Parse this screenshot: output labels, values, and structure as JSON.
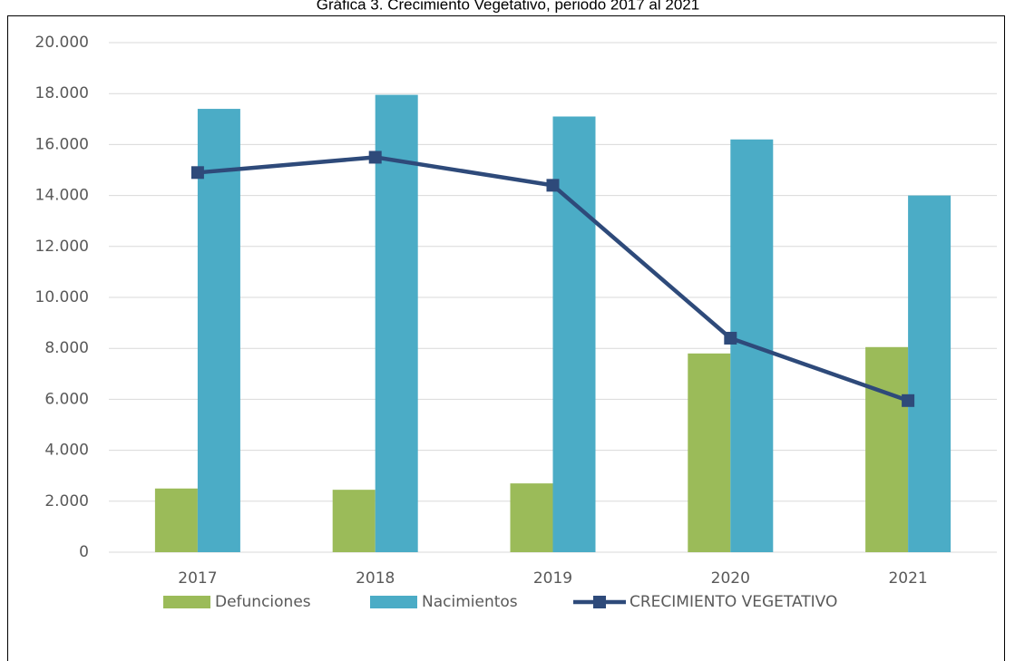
{
  "chart_data": {
    "type": "bar",
    "title": "Gráfica 3. Crecimiento Vegetativo, periodo 2017 al 2021",
    "categories": [
      "2017",
      "2018",
      "2019",
      "2020",
      "2021"
    ],
    "series": [
      {
        "name": "Defunciones",
        "color": "#9bbb59",
        "values": [
          2500,
          2450,
          2700,
          7800,
          8050
        ]
      },
      {
        "name": "Nacimientos",
        "color": "#4bacc6",
        "values": [
          17400,
          17950,
          17100,
          16200,
          14000
        ]
      },
      {
        "name": "CRECIMIENTO VEGETATIVO",
        "color": "#2e4a7a",
        "type": "line",
        "values": [
          14900,
          15500,
          14400,
          8400,
          5950
        ]
      }
    ],
    "ylim": [
      0,
      20000
    ],
    "yticks": [
      0,
      {
        "value": 2000,
        "label": "2.000"
      },
      {
        "value": 4000,
        "label": "4.000"
      },
      {
        "value": 6000,
        "label": "6.000"
      },
      {
        "value": 8000,
        "label": "8.000"
      },
      {
        "value": 10000,
        "label": "10.000"
      },
      {
        "value": 12000,
        "label": "12.000"
      },
      {
        "value": 14000,
        "label": "14.000"
      },
      {
        "value": 16000,
        "label": "16.000"
      },
      {
        "value": 18000,
        "label": "18.000"
      },
      {
        "value": 20000,
        "label": "20.000"
      }
    ],
    "grid": true,
    "legend": "bottom"
  }
}
